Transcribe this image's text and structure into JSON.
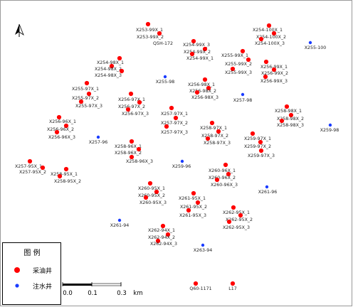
{
  "legend": {
    "title": "图  例",
    "items": [
      {
        "label": "采油井",
        "color": "#ff0000"
      },
      {
        "label": "注水井",
        "color": "#1a3cff"
      }
    ]
  },
  "scale_bar": {
    "ticks": [
      "0.0",
      "0.1",
      "0.3"
    ],
    "unit": "km"
  },
  "north_arrow": {
    "icon": "north-arrow-icon"
  },
  "production_wells": [
    "X253-99X_1",
    "X253-99X_2",
    "X254-99X_3",
    "X254-99X_2",
    "X254-99X_1",
    "X254-100X_1",
    "X254-100X_2",
    "X254-100X_3",
    "X255-99X_1",
    "X255-99X_2",
    "X255-99X_3",
    "X256-99X_1",
    "X256-99X_2",
    "X256-99X_3",
    "X254-98X_1",
    "X254-98X_2",
    "X254-98X_3",
    "X256-98X_1",
    "X256-98X_2",
    "X256-98X_3",
    "X255-97X_1",
    "X255-97X_2",
    "X255-97X_3",
    "X256-97X_1",
    "X256-97X_2",
    "X256-97X_3",
    "X257-97X_1",
    "X257-97X_2",
    "X257-97X_3",
    "X258-97X_1",
    "X258-97X_2",
    "X258-97X_3",
    "X258-98X_1",
    "X258-98X_2",
    "X258-98X_3",
    "X256-96X_1",
    "X256-96X_2",
    "X256-96X_3",
    "X259-97X_1",
    "X259-97X_2",
    "X259-97X_3",
    "X258-96X_1",
    "X258-96X_2",
    "X258-96X_3",
    "X257-95X_1",
    "X257-95X_2",
    "X258-95X_1",
    "X258-95X_2",
    "X260-96X_1",
    "X260-96X_2",
    "X260-96X_3",
    "X260-95X_1",
    "X260-95X_2",
    "X260-95X_3",
    "X261-95X_1",
    "X261-95X_2",
    "X261-95X_3",
    "X262-95X_1",
    "X262-95X_2",
    "X262-95X_3",
    "X262-94X_1",
    "X262-94X_2",
    "X262-94X_3",
    "Q60-1171",
    "L17"
  ],
  "injection_wells": [
    "X255-100",
    "X255-98",
    "X257-98",
    "X259-98",
    "X257-96",
    "X259-96",
    "X261-96",
    "X261-94",
    "X263-94"
  ],
  "other_labels": [
    "Q5H-172"
  ]
}
